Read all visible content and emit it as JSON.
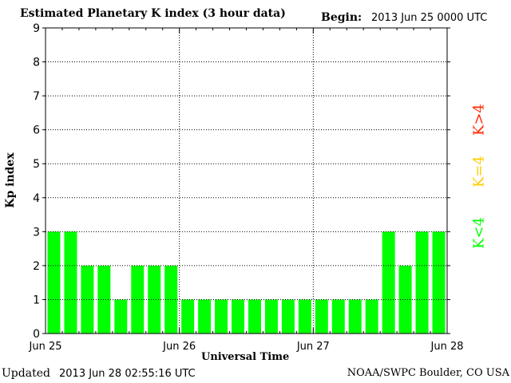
{
  "header": {
    "title": "Estimated Planetary K index (3 hour data)",
    "begin_label": "Begin:",
    "begin_value": "2013 Jun 25 0000 UTC"
  },
  "footer": {
    "updated_label": "Updated",
    "updated_value": "2013 Jun 28 02:55:16 UTC",
    "credit": "NOAA/SWPC Boulder, CO USA"
  },
  "legend": {
    "high": {
      "label": "K>4",
      "color": "#ff2a00"
    },
    "equal": {
      "label": "K=4",
      "color": "#ffcc00"
    },
    "low": {
      "label": "K<4",
      "color": "#00ff00"
    }
  },
  "chart_data": {
    "type": "bar",
    "title": "Estimated Planetary K index (3 hour data)",
    "xlabel": "Universal Time",
    "ylabel": "Kp index",
    "ylim": [
      0,
      9
    ],
    "yticks": [
      0,
      1,
      2,
      3,
      4,
      5,
      6,
      7,
      8,
      9
    ],
    "xtick_labels": [
      "Jun 25",
      "Jun 26",
      "Jun 27",
      "Jun 28"
    ],
    "grid": true,
    "bar_color": "#00ff00",
    "values": [
      3,
      3,
      2,
      2,
      1,
      2,
      2,
      2,
      1,
      1,
      1,
      1,
      1,
      1,
      1,
      1,
      1,
      1,
      1,
      1,
      3,
      2,
      3,
      3
    ]
  }
}
